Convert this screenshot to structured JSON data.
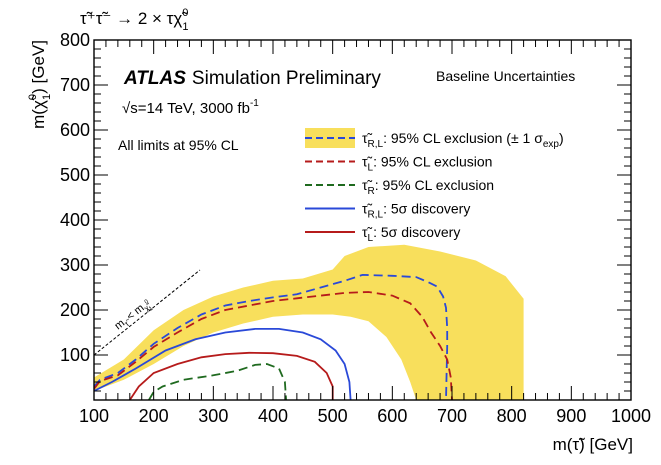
{
  "chart_data": {
    "type": "line",
    "title": "τ̃⁺τ̃⁻ → 2 × τχ̃⁰₁",
    "title_parts": {
      "main": "τ̃⁺τ̃⁻ → 2 × τχ̃",
      "sup": "0",
      "sub": "1"
    },
    "xlabel": "m(τ̃) [GeV]",
    "ylabel": "m(χ̃⁰₁) [GeV]",
    "ylabel_parts": {
      "pre": "m(χ̃",
      "sup": "0",
      "sub": "1",
      "post": ") [GeV]"
    },
    "xlim": [
      100,
      1000
    ],
    "ylim": [
      0,
      800
    ],
    "xticks": [
      100,
      200,
      300,
      400,
      500,
      600,
      700,
      800,
      900,
      1000
    ],
    "yticks": [
      100,
      200,
      300,
      400,
      500,
      600,
      700,
      800
    ],
    "annotations": {
      "atlas": "ATLAS",
      "atlas_suffix": "Simulation Preliminary",
      "energy": "√s=14 TeV, 3000 fb",
      "energy_sup": "-1",
      "limits": "All limits at 95% CL",
      "uncertainty": "Baseline Uncertainties",
      "kinematic": "m",
      "kinematic_sub1": "τ̃",
      "kinematic_op": "<",
      "kinematic_m2": "m",
      "kinematic_sub2": "χ̃",
      "kinematic_sub2_sup": "0",
      "kinematic_sub2_sub": "1"
    },
    "legend_position": "top-right",
    "band": {
      "color": "#f8df5c",
      "upper": [
        [
          100,
          50
        ],
        [
          150,
          90
        ],
        [
          200,
          155
        ],
        [
          250,
          200
        ],
        [
          300,
          230
        ],
        [
          350,
          250
        ],
        [
          400,
          265
        ],
        [
          450,
          270
        ],
        [
          500,
          290
        ],
        [
          520,
          320
        ],
        [
          560,
          340
        ],
        [
          620,
          345
        ],
        [
          680,
          330
        ],
        [
          740,
          310
        ],
        [
          790,
          275
        ],
        [
          820,
          225
        ],
        [
          820,
          0
        ]
      ],
      "lower": [
        [
          640,
          0
        ],
        [
          630,
          40
        ],
        [
          615,
          90
        ],
        [
          590,
          140
        ],
        [
          560,
          175
        ],
        [
          530,
          185
        ],
        [
          500,
          190
        ],
        [
          450,
          190
        ],
        [
          400,
          185
        ],
        [
          350,
          170
        ],
        [
          300,
          150
        ],
        [
          250,
          120
        ],
        [
          200,
          80
        ],
        [
          150,
          45
        ],
        [
          100,
          20
        ]
      ]
    },
    "series": [
      {
        "name": "τ̃R,L: 95% CL exclusion (± 1 σexp)",
        "name_main": "τ̃",
        "name_sub": "R,L",
        "name_rest": ": 95% CL exclusion (± 1 σ",
        "name_sub2": "exp",
        "name_tail": ")",
        "color": "#2a49d8",
        "dash": "9,5",
        "band": true,
        "points": [
          [
            100,
            30
          ],
          [
            110,
            45
          ],
          [
            140,
            60
          ],
          [
            170,
            90
          ],
          [
            200,
            125
          ],
          [
            240,
            160
          ],
          [
            280,
            190
          ],
          [
            320,
            210
          ],
          [
            360,
            220
          ],
          [
            400,
            228
          ],
          [
            440,
            235
          ],
          [
            480,
            250
          ],
          [
            520,
            265
          ],
          [
            550,
            278
          ],
          [
            600,
            276
          ],
          [
            640,
            273
          ],
          [
            660,
            262
          ],
          [
            675,
            252
          ],
          [
            685,
            230
          ],
          [
            690,
            205
          ],
          [
            692,
            160
          ],
          [
            692,
            120
          ],
          [
            690,
            0
          ]
        ]
      },
      {
        "name": "τ̃L: 95% CL exclusion",
        "name_main": "τ̃",
        "name_sub": "L",
        "name_rest": ": 95% CL exclusion",
        "color": "#b61b1b",
        "dash": "9,5",
        "points": [
          [
            100,
            25
          ],
          [
            110,
            42
          ],
          [
            140,
            55
          ],
          [
            170,
            85
          ],
          [
            200,
            118
          ],
          [
            240,
            150
          ],
          [
            280,
            180
          ],
          [
            320,
            200
          ],
          [
            360,
            210
          ],
          [
            400,
            220
          ],
          [
            440,
            226
          ],
          [
            480,
            232
          ],
          [
            520,
            238
          ],
          [
            560,
            240
          ],
          [
            600,
            232
          ],
          [
            630,
            215
          ],
          [
            650,
            185
          ],
          [
            665,
            150
          ],
          [
            680,
            120
          ],
          [
            692,
            90
          ],
          [
            698,
            50
          ],
          [
            700,
            0
          ]
        ]
      },
      {
        "name": "τ̃R: 95% CL exclusion",
        "name_main": "τ̃",
        "name_sub": "R",
        "name_rest": ": 95% CL exclusion",
        "color": "#1f6a1f",
        "dash": "9,5",
        "points": [
          [
            192,
            0
          ],
          [
            200,
            18
          ],
          [
            215,
            30
          ],
          [
            250,
            45
          ],
          [
            300,
            55
          ],
          [
            340,
            65
          ],
          [
            370,
            78
          ],
          [
            390,
            80
          ],
          [
            410,
            70
          ],
          [
            420,
            40
          ],
          [
            422,
            0
          ]
        ]
      },
      {
        "name": "τ̃R,L: 5σ discovery",
        "name_main": "τ̃",
        "name_sub": "R,L",
        "name_rest": ": 5σ discovery",
        "color": "#2a49d8",
        "dash": "",
        "points": [
          [
            100,
            20
          ],
          [
            130,
            40
          ],
          [
            170,
            70
          ],
          [
            220,
            110
          ],
          [
            270,
            135
          ],
          [
            320,
            150
          ],
          [
            370,
            158
          ],
          [
            410,
            158
          ],
          [
            450,
            150
          ],
          [
            480,
            135
          ],
          [
            505,
            110
          ],
          [
            520,
            80
          ],
          [
            528,
            40
          ],
          [
            530,
            0
          ]
        ]
      },
      {
        "name": "τ̃L: 5σ discovery",
        "name_main": "τ̃",
        "name_sub": "L",
        "name_rest": ": 5σ discovery",
        "color": "#b61b1b",
        "dash": "",
        "points": [
          [
            160,
            0
          ],
          [
            175,
            30
          ],
          [
            200,
            60
          ],
          [
            240,
            80
          ],
          [
            280,
            95
          ],
          [
            320,
            102
          ],
          [
            360,
            105
          ],
          [
            400,
            104
          ],
          [
            440,
            98
          ],
          [
            470,
            85
          ],
          [
            490,
            60
          ],
          [
            500,
            30
          ],
          [
            500,
            0
          ]
        ]
      }
    ]
  }
}
